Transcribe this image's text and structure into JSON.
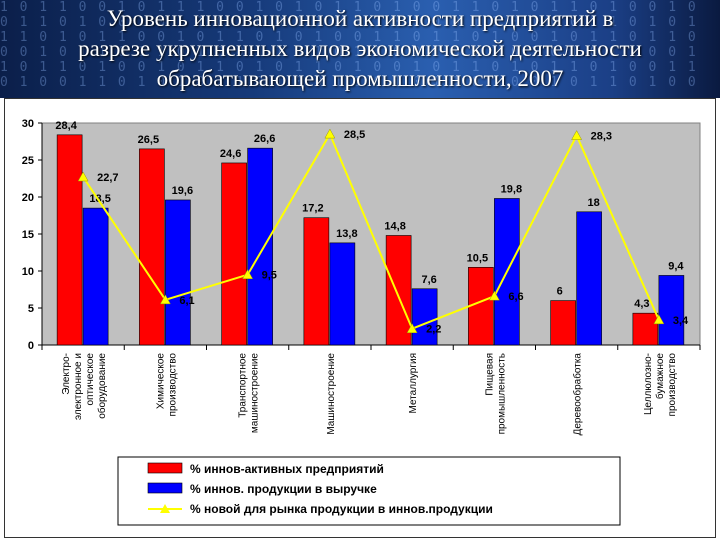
{
  "slide": {
    "title_lines": [
      "Уровень инновационной активности предприятий в",
      "разрезе укрупненных видов экономической деятельности",
      "обрабатывающей промышленности, 2007"
    ]
  },
  "chart_data": {
    "type": "bar",
    "ylim": [
      0,
      30
    ],
    "yticks": [
      0,
      5,
      10,
      15,
      20,
      25,
      30
    ],
    "grid": false,
    "legend_position": "bottom",
    "categories": [
      [
        "Электро-",
        "электронное и",
        "оптическое",
        "оборудование"
      ],
      [
        "Химическое",
        "производство"
      ],
      [
        "Транспортное",
        "машиностроение"
      ],
      [
        "Машиностроение"
      ],
      [
        "Металлургия"
      ],
      [
        "Пищевая",
        "промышленность"
      ],
      [
        "Деревообработка"
      ],
      [
        "Целлюлозно-",
        "бумажное",
        "производство"
      ]
    ],
    "series": [
      {
        "name": "% иннов-активных предприятий",
        "type": "bar",
        "color": "#ff0000",
        "values": [
          28.4,
          26.5,
          24.6,
          17.2,
          14.8,
          10.5,
          6,
          4.3
        ],
        "labels": [
          "28,4",
          "26,5",
          "24,6",
          "17,2",
          "14,8",
          "10,5",
          "6",
          "4,3"
        ]
      },
      {
        "name": "% иннов. продукции в выручке",
        "type": "bar",
        "color": "#0000ff",
        "values": [
          18.5,
          19.6,
          26.6,
          13.8,
          7.6,
          19.8,
          18,
          9.4
        ],
        "labels": [
          "18,5",
          "19,6",
          "26,6",
          "13,8",
          "7,6",
          "19,8",
          "18",
          "9,4"
        ]
      },
      {
        "name": "% новой для рынка продукции в иннов.продукции",
        "type": "line",
        "color": "#ffff00",
        "values": [
          22.7,
          6.1,
          9.5,
          28.5,
          2.2,
          6.6,
          28.3,
          3.4
        ],
        "labels": [
          "22,7",
          "6,1",
          "9,5",
          "28,5",
          "2,2",
          "6,6",
          "28,3",
          "3,4"
        ]
      }
    ]
  }
}
